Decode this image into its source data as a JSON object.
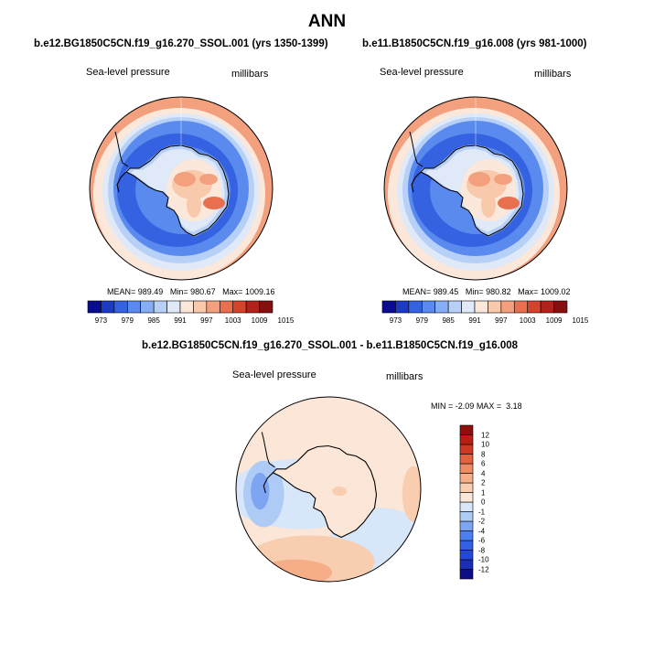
{
  "figure": {
    "title": "ANN",
    "colors": {
      "land_outline": "#000000",
      "map_border": "#000000"
    },
    "panels": [
      {
        "case": "b.e12.BG1850C5CN.f19_g16.270_SSOL.001 (yrs 1350-1399)",
        "variable": "Sea-level pressure",
        "units": "millibars",
        "mean_label": "MEAN=",
        "mean": "989.49",
        "min_label": "Min=",
        "min": "980.67",
        "max_label": "Max=",
        "max": "1009.16"
      },
      {
        "case": "b.e11.B1850C5CN.f19_g16.008 (yrs 981-1000)",
        "variable": "Sea-level pressure",
        "units": "millibars",
        "mean_label": "MEAN=",
        "mean": "989.45",
        "min_label": "Min=",
        "min": "980.82",
        "max_label": "Max=",
        "max": "1009.02"
      }
    ],
    "difference": {
      "title": "b.e12.BG1850C5CN.f19_g16.270_SSOL.001 - b.e11.B1850C5CN.f19_g16.008",
      "variable": "Sea-level pressure",
      "units": "millibars",
      "min_label": "MIN =",
      "min": "-2.09",
      "max_label": "MAX =",
      "max": "3.18"
    }
  },
  "chart_data": [
    {
      "type": "heatmap",
      "title": "b.e12.BG1850C5CN.f19_g16.270_SSOL.001 (yrs 1350-1399)",
      "field": "Sea-level pressure",
      "units": "millibars",
      "projection": "south polar stereographic",
      "mean": 989.49,
      "min": 980.67,
      "max": 1009.16,
      "colorbar": {
        "orientation": "horizontal",
        "levels": [
          973,
          979,
          985,
          991,
          997,
          1003,
          1009,
          1015
        ],
        "colors": [
          "#0a0c8f",
          "#1c3bc4",
          "#3462e0",
          "#5a8aee",
          "#86aef5",
          "#b6d0f8",
          "#dfe9f8",
          "#fbe8da",
          "#f8c9ab",
          "#f3a07e",
          "#e8704f",
          "#d4432c",
          "#b3221a",
          "#861010"
        ]
      }
    },
    {
      "type": "heatmap",
      "title": "b.e11.B1850C5CN.f19_g16.008 (yrs 981-1000)",
      "field": "Sea-level pressure",
      "units": "millibars",
      "projection": "south polar stereographic",
      "mean": 989.45,
      "min": 980.82,
      "max": 1009.02,
      "colorbar": {
        "orientation": "horizontal",
        "levels": [
          973,
          979,
          985,
          991,
          997,
          1003,
          1009,
          1015
        ],
        "colors": [
          "#0a0c8f",
          "#1c3bc4",
          "#3462e0",
          "#5a8aee",
          "#86aef5",
          "#b6d0f8",
          "#dfe9f8",
          "#fbe8da",
          "#f8c9ab",
          "#f3a07e",
          "#e8704f",
          "#d4432c",
          "#b3221a",
          "#861010"
        ]
      }
    },
    {
      "type": "heatmap",
      "title": "b.e12.BG1850C5CN.f19_g16.270_SSOL.001 - b.e11.B1850C5CN.f19_g16.008",
      "field": "Sea-level pressure",
      "units": "millibars",
      "projection": "south polar stereographic",
      "min": -2.09,
      "max": 3.18,
      "colorbar": {
        "orientation": "vertical",
        "levels": [
          -12,
          -10,
          -8,
          -6,
          -4,
          -2,
          -1,
          0,
          1,
          2,
          4,
          6,
          8,
          10,
          12
        ],
        "colors": [
          "#0d0d85",
          "#1a2db6",
          "#2448d6",
          "#3360e6",
          "#4c7ff0",
          "#7ea5f2",
          "#aecbf5",
          "#d7e6f8",
          "#fbe6d7",
          "#f8cdb0",
          "#f5ae88",
          "#ee8b62",
          "#e3623f",
          "#cf3923",
          "#b81e14",
          "#900e0e"
        ]
      }
    }
  ]
}
